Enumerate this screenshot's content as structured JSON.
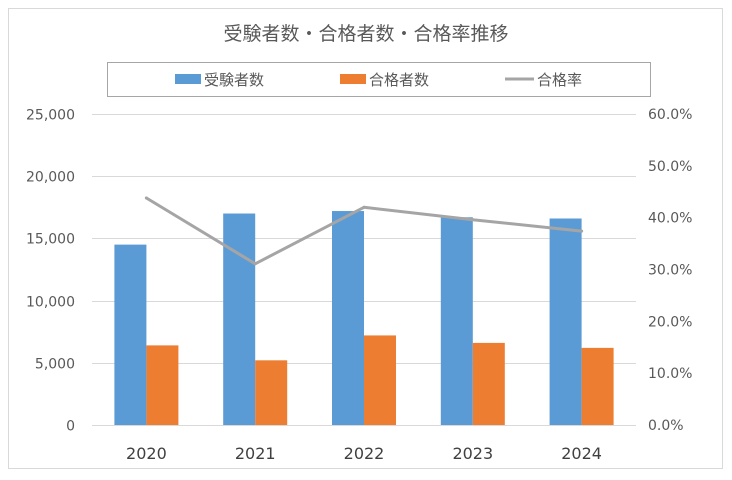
{
  "chart_data": {
    "type": "bar",
    "title": "受験者数・合格者数・合格率推移",
    "categories": [
      "2020",
      "2021",
      "2022",
      "2023",
      "2024"
    ],
    "series": [
      {
        "name": "受験者数",
        "type": "bar",
        "axis": "left",
        "color": "#5B9BD5",
        "values": [
          14500,
          17000,
          17200,
          16700,
          16600
        ]
      },
      {
        "name": "合格者数",
        "type": "bar",
        "axis": "left",
        "color": "#ED7D31",
        "values": [
          6400,
          5200,
          7200,
          6600,
          6200
        ]
      },
      {
        "name": "合格率",
        "type": "line",
        "axis": "right",
        "color": "#A5A5A5",
        "values": [
          43.8,
          31.1,
          42.0,
          39.6,
          37.4
        ]
      }
    ],
    "y_left": {
      "min": 0,
      "max": 25000,
      "step": 5000,
      "tick_labels": [
        "0",
        "5,000",
        "10,000",
        "15,000",
        "20,000",
        "25,000"
      ]
    },
    "y_right": {
      "min": 0,
      "max": 60,
      "step": 10,
      "tick_labels": [
        "0.0%",
        "10.0%",
        "20.0%",
        "30.0%",
        "40.0%",
        "50.0%",
        "60.0%"
      ]
    },
    "legend": "top",
    "grid": true
  }
}
